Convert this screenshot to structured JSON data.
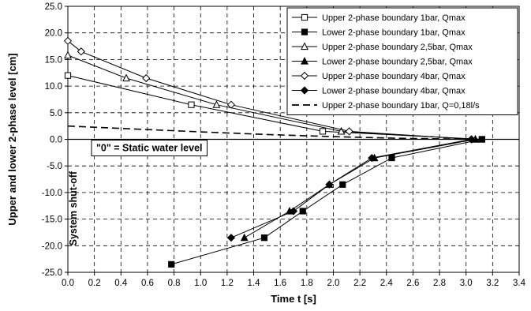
{
  "chart_data": {
    "type": "scatter",
    "xlabel": "Time t [s]",
    "ylabel": "Upper and lower 2-phase level [cm]",
    "xlim": [
      0.0,
      3.4
    ],
    "ylim": [
      -25.0,
      25.0
    ],
    "x_ticks": [
      "0.0",
      "0.2",
      "0.4",
      "0.6",
      "0.8",
      "1.0",
      "1.2",
      "1.4",
      "1.6",
      "1.8",
      "2.0",
      "2.2",
      "2.4",
      "2.6",
      "2.8",
      "3.0",
      "3.2",
      "3.4"
    ],
    "y_ticks": [
      "25.0",
      "20.0",
      "15.0",
      "10.0",
      "5.0",
      "0.0",
      "-5.0",
      "-10.0",
      "-15.0",
      "-20.0",
      "-25.0"
    ],
    "grid": "dashed",
    "legend_position": "top-right",
    "series": [
      {
        "name": "Upper 2-phase boundary 1bar, Qmax",
        "marker": "open-square",
        "line": "solid",
        "x": [
          0.0,
          0.93,
          1.92,
          3.12
        ],
        "y": [
          12.0,
          6.5,
          1.5,
          0.0
        ]
      },
      {
        "name": "Lower 2-phase boundary 1bar, Qmax",
        "marker": "filled-square",
        "line": "solid",
        "x": [
          0.78,
          1.48,
          1.77,
          2.07,
          2.44,
          3.12
        ],
        "y": [
          -23.5,
          -18.5,
          -13.5,
          -8.5,
          -3.5,
          0.0
        ]
      },
      {
        "name": "Upper 2-phase boundary 2,5bar, Qmax",
        "marker": "open-triangle",
        "line": "solid",
        "x": [
          0.0,
          0.44,
          1.12,
          2.06,
          3.07
        ],
        "y": [
          15.8,
          11.5,
          6.5,
          1.5,
          0.0
        ]
      },
      {
        "name": "Lower 2-phase boundary 2,5bar, Qmax",
        "marker": "filled-triangle",
        "line": "solid",
        "x": [
          1.33,
          1.67,
          1.97,
          2.31,
          3.07
        ],
        "y": [
          -18.5,
          -13.5,
          -8.5,
          -3.5,
          0.0
        ]
      },
      {
        "name": "Upper 2-phase boundary 4bar, Qmax",
        "marker": "open-diamond",
        "line": "solid",
        "x": [
          0.0,
          0.1,
          0.59,
          1.23,
          2.12,
          3.04
        ],
        "y": [
          18.5,
          16.5,
          11.5,
          6.5,
          1.5,
          0.0
        ]
      },
      {
        "name": "Lower 2-phase boundary 4bar, Qmax",
        "marker": "filled-diamond",
        "line": "solid",
        "x": [
          1.23,
          1.7,
          1.97,
          2.29,
          3.04
        ],
        "y": [
          -18.5,
          -13.5,
          -8.5,
          -3.5,
          0.0
        ]
      },
      {
        "name": "Upper 2-phase boundary 1bar, Q=0,18l/s",
        "marker": "none",
        "line": "dashed",
        "x": [
          0.0,
          0.5,
          1.0,
          1.5,
          2.0,
          2.5,
          3.05
        ],
        "y": [
          2.5,
          1.95,
          1.4,
          0.9,
          0.5,
          0.2,
          0.0
        ]
      }
    ],
    "annotations": [
      "\"0\" = Static water level",
      "System shut-off"
    ]
  }
}
